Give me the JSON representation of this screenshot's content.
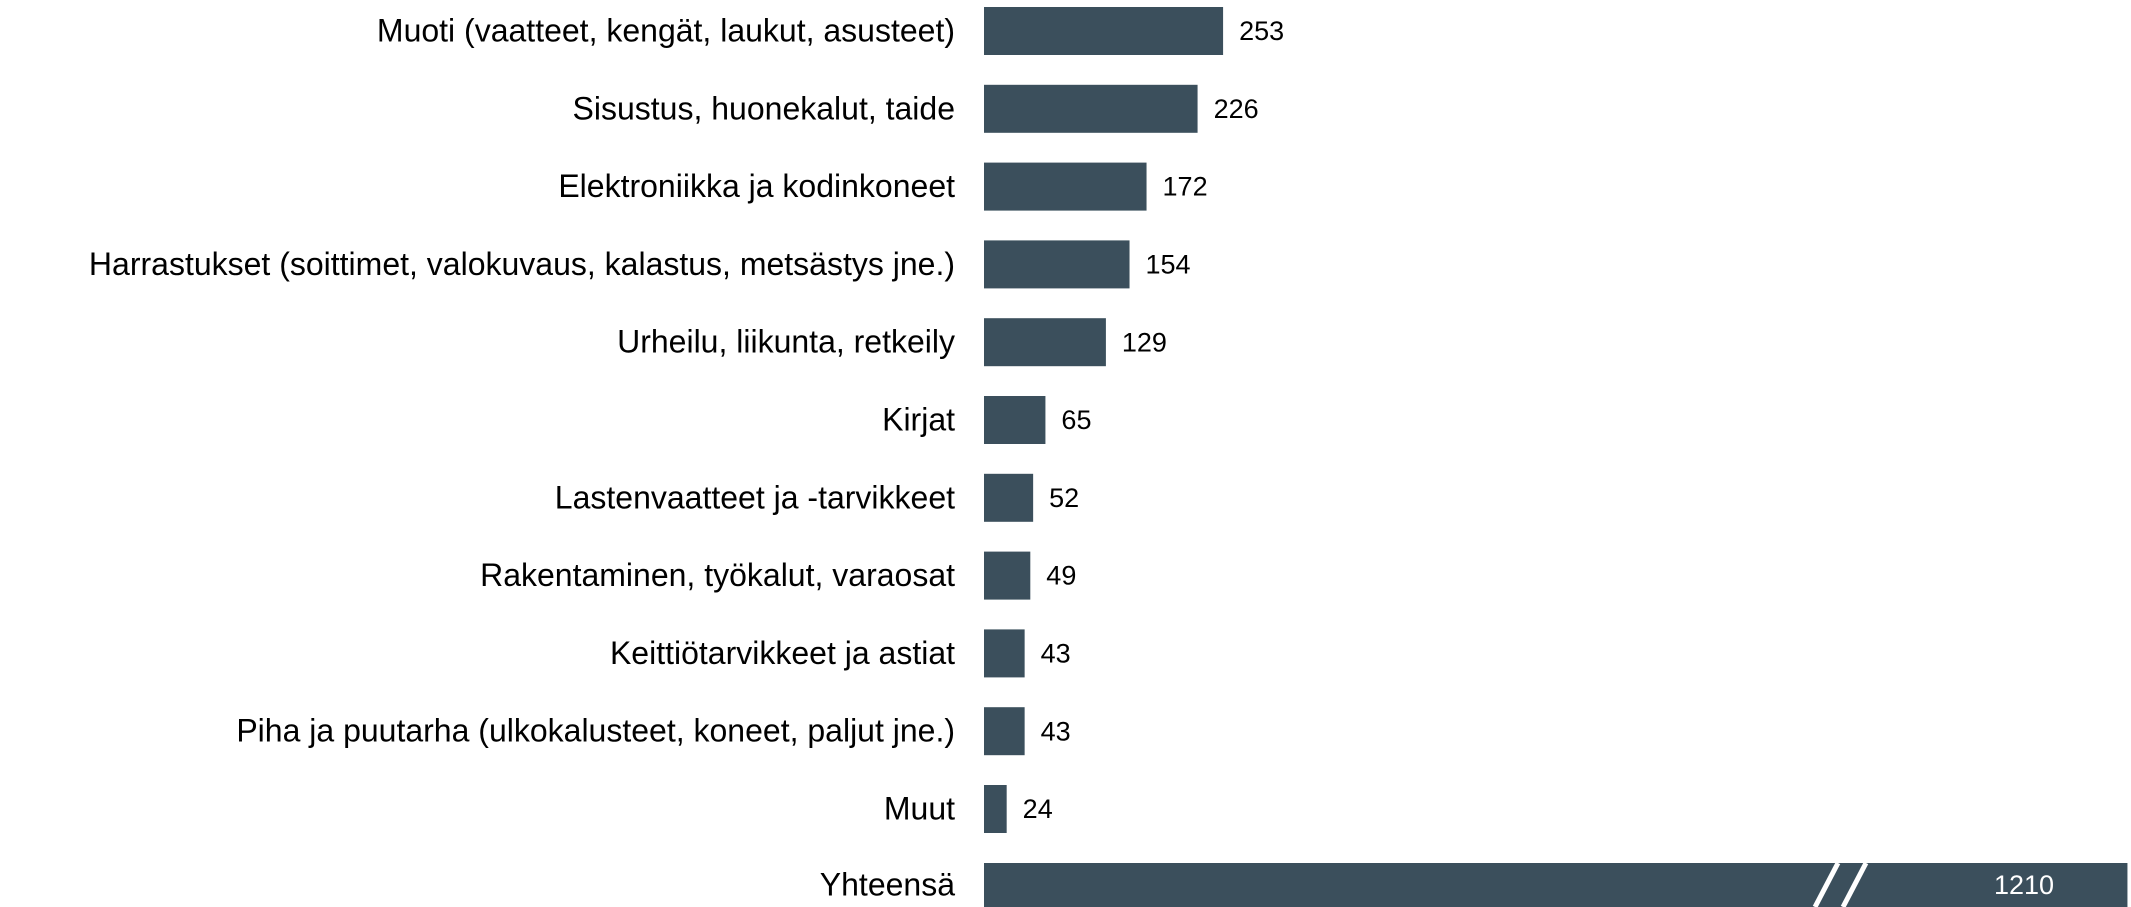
{
  "chart_data": {
    "type": "barh",
    "categories": [
      "Muoti (vaatteet, kengät, laukut, asusteet)",
      "Sisustus, huonekalut, taide",
      "Elektroniikka ja kodinkoneet",
      "Harrastukset (soittimet, valokuvaus, kalastus, metsästys jne.)",
      "Urheilu, liikunta, retkeily",
      "Kirjat",
      "Lastenvaatteet ja -tarvikkeet",
      "Rakentaminen, työkalut, varaosat",
      "Keittiötarvikkeet ja astiat",
      "Piha ja puutarha (ulkokalusteet, koneet, paljut jne.)",
      "Muut",
      "Yhteensä"
    ],
    "values": [
      253,
      226,
      172,
      154,
      129,
      65,
      52,
      49,
      43,
      43,
      24,
      1210
    ],
    "color": "#3b4f5c"
  }
}
